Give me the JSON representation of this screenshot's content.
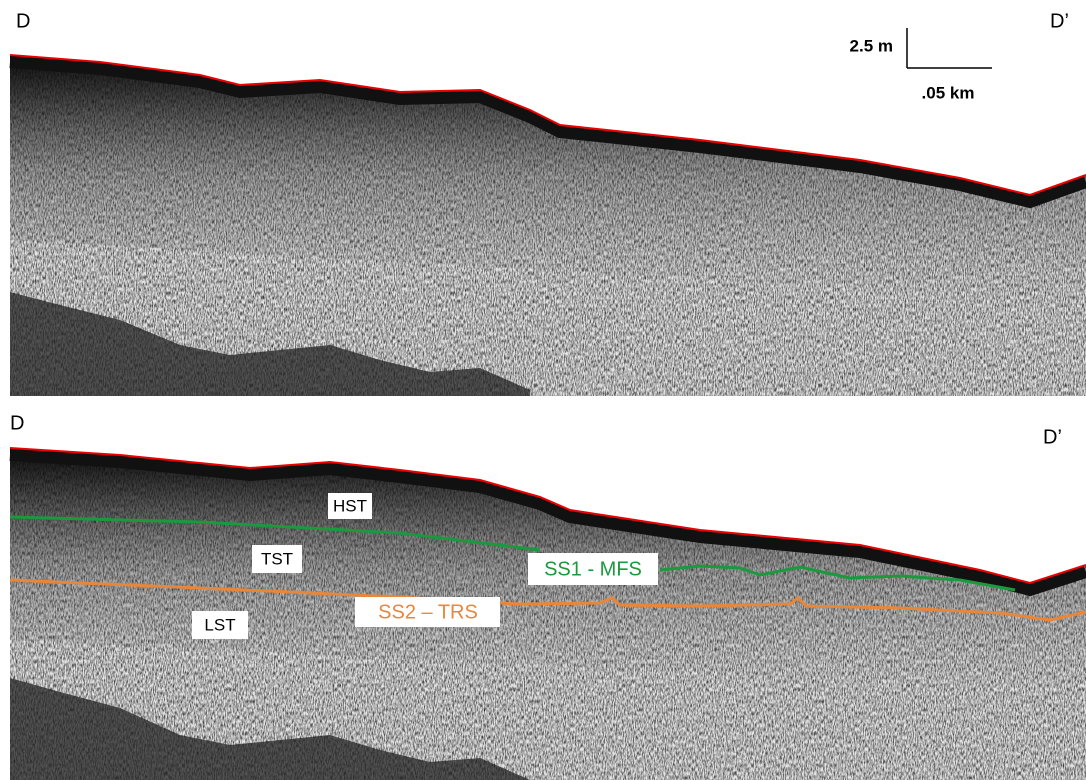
{
  "top_panel": {
    "left_label": "D",
    "right_label": "D’",
    "scale_bar": {
      "vertical": "2.5 m",
      "horizontal": ".05 km"
    }
  },
  "bottom_panel": {
    "left_label": "D",
    "right_label": "D’",
    "units": [
      "HST",
      "TST",
      "LST"
    ],
    "surfaces": [
      {
        "label": "SS1 - MFS"
      },
      {
        "label": "SS2 – TRS"
      }
    ]
  }
}
